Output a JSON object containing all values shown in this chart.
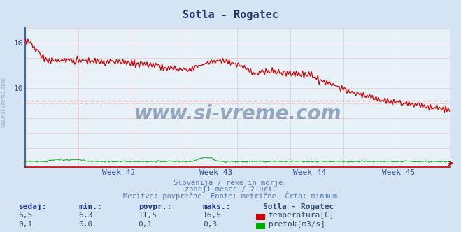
{
  "title": "Sotla - Rogatec",
  "bg_color": "#d4e4f4",
  "plot_bg_color": "#e8f0f8",
  "grid_color_minor": "#e0c8c8",
  "grid_color_major": "#d0b8b8",
  "temp_color": "#cc0000",
  "flow_color": "#00aa00",
  "dashed_line_color": "#880000",
  "dashed_line_value": 8.3,
  "axis_color": "#4466aa",
  "x_tick_labels": [
    "Week 42",
    "Week 43",
    "Week 44",
    "Week 45"
  ],
  "ylim": [
    -0.5,
    18.0
  ],
  "yticks_labeled": [
    10,
    16
  ],
  "subtitle_line1": "Slovenija / reke in morje.",
  "subtitle_line2": "zadnji mesec / 2 uri.",
  "subtitle_line3": "Meritve: povprečne  Enote: metrične  Črta: minmum",
  "watermark": "www.si-vreme.com",
  "stats_label1": "sedaj:",
  "stats_label2": "min.:",
  "stats_label3": "povpr.:",
  "stats_label4": "maks.:",
  "stats_station": "Sotla - Rogatec",
  "temp_sedaj": "6,5",
  "temp_min": "6,3",
  "temp_povpr": "11,5",
  "temp_maks": "16,5",
  "flow_sedaj": "0,1",
  "flow_min": "0,0",
  "flow_povpr": "0,1",
  "flow_maks": "0,3",
  "legend_temp": "temperatura[C]",
  "legend_flow": "pretok[m3/s]"
}
